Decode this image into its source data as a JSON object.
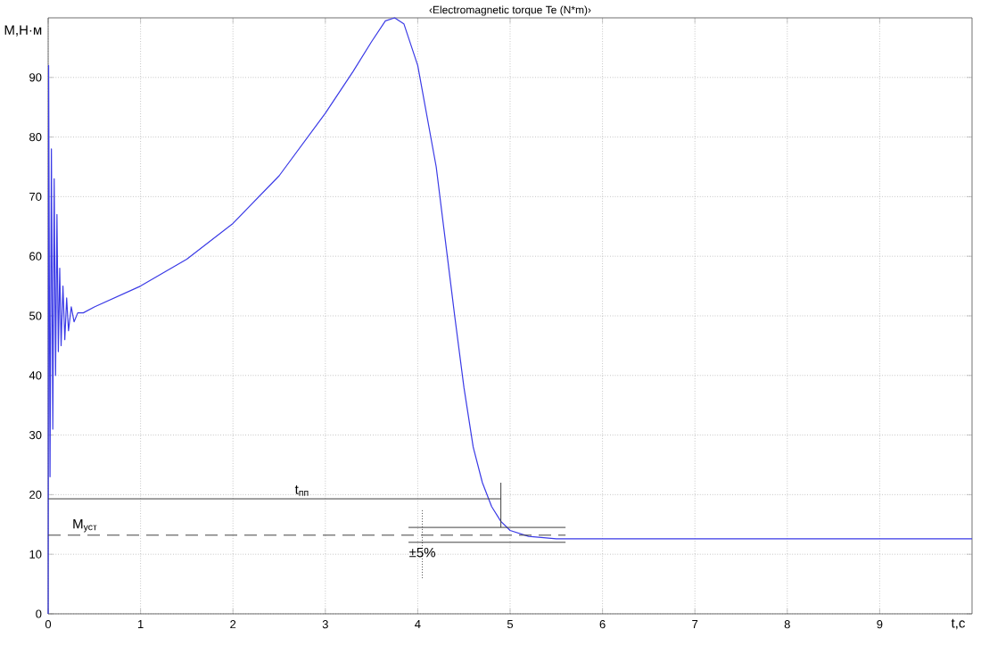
{
  "chart_data": {
    "type": "line",
    "title": "‹Electromagnetic torque Te (N*m)›",
    "xlabel": "t,c",
    "ylabel": "М,Н·м",
    "xlim": [
      0,
      10
    ],
    "ylim": [
      0,
      100
    ],
    "xticks": [
      0,
      1,
      2,
      3,
      4,
      5,
      6,
      7,
      8,
      9
    ],
    "yticks": [
      0,
      10,
      20,
      30,
      40,
      50,
      60,
      70,
      80,
      90
    ],
    "grid": true,
    "line_style": "solid",
    "series": [
      {
        "color": "#3a3ae6",
        "x": [
          0,
          0.005,
          0.02,
          0.035,
          0.05,
          0.065,
          0.08,
          0.095,
          0.11,
          0.125,
          0.14,
          0.16,
          0.18,
          0.2,
          0.22,
          0.25,
          0.28,
          0.32,
          0.38,
          0.5,
          1,
          1.5,
          2,
          2.5,
          3,
          3.3,
          3.5,
          3.65,
          3.75,
          3.85,
          4.0,
          4.2,
          4.4,
          4.5,
          4.6,
          4.7,
          4.8,
          4.9,
          5.0,
          5.2,
          5.5,
          6,
          7,
          8,
          9,
          10
        ],
        "values": [
          0,
          92,
          23,
          78,
          31,
          73,
          40,
          67,
          44,
          58,
          45,
          55,
          46,
          53,
          47.5,
          51.5,
          49,
          50.5,
          50.5,
          51.5,
          55,
          59.5,
          65.5,
          73.5,
          84,
          91,
          96,
          99.5,
          100,
          99,
          92,
          75,
          50,
          38,
          28,
          22,
          18,
          15.5,
          14,
          13,
          12.6,
          12.6,
          12.6,
          12.6,
          12.6,
          12.6
        ]
      },
      {
        "type": "line",
        "color": "#404040",
        "x": [
          0,
          4.9
        ],
        "values": [
          19.3,
          19.3
        ]
      },
      {
        "type": "line",
        "color": "#404040",
        "line_style": "dashed",
        "x": [
          0,
          5.6
        ],
        "values": [
          13.2,
          13.2
        ]
      },
      {
        "type": "line",
        "color": "#404040",
        "x": [
          3.9,
          5.6
        ],
        "values": [
          14.5,
          14.5
        ]
      },
      {
        "type": "line",
        "color": "#404040",
        "x": [
          3.9,
          5.6
        ],
        "values": [
          12,
          12
        ]
      },
      {
        "type": "line",
        "color": "#404040",
        "x": [
          4.9,
          4.9
        ],
        "values": [
          14.5,
          22
        ]
      },
      {
        "type": "line",
        "color": "#404040",
        "line_style": "dotted",
        "x": [
          4.05,
          4.05
        ],
        "values": [
          6,
          17.5
        ]
      }
    ],
    "annotations": [
      {
        "text": "t$_{пп}$",
        "x": 2.75,
        "y": 19.3
      },
      {
        "text": "M$_{уст}$",
        "x": 0.4,
        "y": 13.2
      },
      {
        "text": "±5%",
        "x": 4.05,
        "y": 9
      }
    ]
  }
}
